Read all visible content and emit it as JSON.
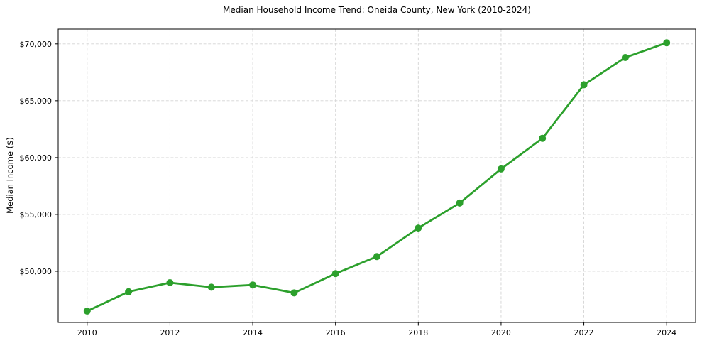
{
  "chart_data": {
    "type": "line",
    "title": "Median Household Income Trend: Oneida County, New York (2010-2024)",
    "xlabel": "",
    "ylabel": "Median Income ($)",
    "x": [
      2010,
      2011,
      2012,
      2013,
      2014,
      2015,
      2016,
      2017,
      2018,
      2019,
      2020,
      2021,
      2022,
      2023,
      2024
    ],
    "series": [
      {
        "name": "Median household income",
        "values": [
          46500,
          48200,
          49000,
          48600,
          48800,
          48100,
          49800,
          51300,
          53800,
          56000,
          59000,
          61700,
          66400,
          68800,
          70100
        ]
      }
    ],
    "xlim": [
      2009.3,
      2024.7
    ],
    "ylim": [
      45500,
      71300
    ],
    "xticks": [
      2010,
      2012,
      2014,
      2016,
      2018,
      2020,
      2022,
      2024
    ],
    "xtick_labels": [
      "2010",
      "2012",
      "2014",
      "2016",
      "2018",
      "2020",
      "2022",
      "2024"
    ],
    "yticks": [
      50000,
      55000,
      60000,
      65000,
      70000
    ],
    "ytick_labels": [
      "$50,000",
      "$55,000",
      "$60,000",
      "$65,000",
      "$70,000"
    ],
    "grid": true,
    "grid_style": "dashed",
    "legend": "none",
    "marker": "circle",
    "colors": {
      "line": "#2ca02c",
      "marker": "#2ca02c",
      "grid": "#d4d4d4",
      "axis": "#000000",
      "text": "#000000",
      "background": "#ffffff"
    }
  }
}
